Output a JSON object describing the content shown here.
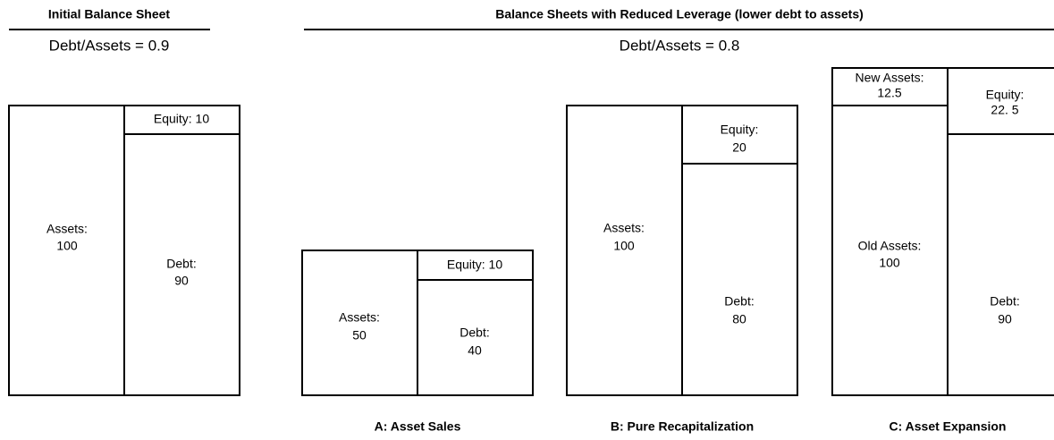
{
  "left": {
    "heading": "Initial Balance Sheet",
    "ratio": "Debt/Assets = 0.9",
    "sheet": {
      "assets": [
        "Assets:",
        "100"
      ],
      "equity": [
        "Equity:  10"
      ],
      "debt": [
        "Debt:",
        "90"
      ]
    }
  },
  "right": {
    "heading": "Balance Sheets with Reduced Leverage (lower debt to assets)",
    "ratio": "Debt/Assets = 0.8",
    "sheets": [
      {
        "label": "A: Asset Sales",
        "assets": [
          "Assets:",
          "50"
        ],
        "equity": [
          "Equity:  10"
        ],
        "debt": [
          "Debt:",
          "40"
        ]
      },
      {
        "label": "B: Pure Recapitalization",
        "assets": [
          "Assets:",
          "100"
        ],
        "equity": [
          "Equity:",
          "20"
        ],
        "debt": [
          "Debt:",
          "80"
        ]
      },
      {
        "label": "C: Asset Expansion",
        "new_assets": [
          "New  Assets:",
          "12.5"
        ],
        "assets": [
          "Old Assets:",
          "100"
        ],
        "equity": [
          "Equity:",
          "22. 5"
        ],
        "debt": [
          "Debt:",
          "90"
        ]
      }
    ]
  }
}
